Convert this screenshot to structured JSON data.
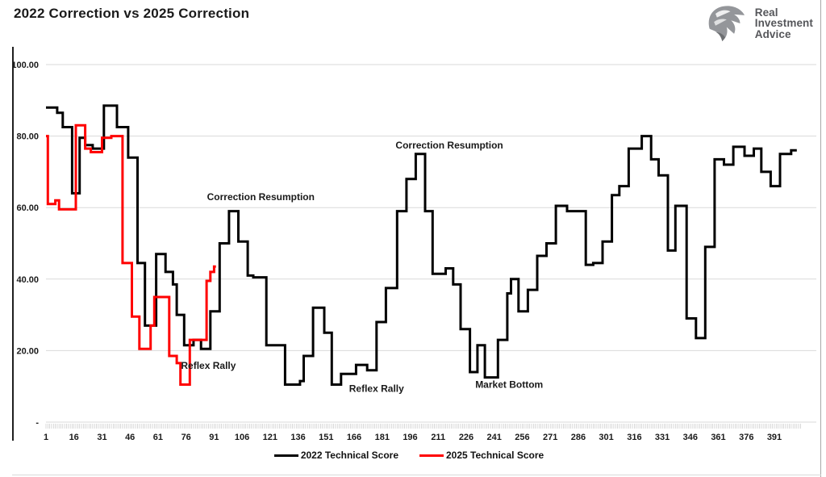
{
  "header": {
    "title": "2022 Correction vs 2025 Correction"
  },
  "logo": {
    "lines": [
      "Real",
      "Investment",
      "Advice"
    ],
    "eagle_color": "#94969a",
    "text_color": "#55565a"
  },
  "legend": [
    {
      "label": "2022 Technical Score",
      "color": "#000000"
    },
    {
      "label": "2025 Technical Score",
      "color": "#ff0000"
    }
  ],
  "chart_data": {
    "type": "line",
    "interpolation": "step-after",
    "title": "2022 Correction vs 2025 Correction",
    "grid": true,
    "legend_position": "bottom",
    "x_axis": {
      "min": 1,
      "max": 405,
      "ticks": [
        1,
        16,
        31,
        46,
        61,
        76,
        91,
        106,
        121,
        136,
        151,
        166,
        181,
        196,
        211,
        226,
        241,
        256,
        271,
        286,
        301,
        316,
        331,
        346,
        361,
        376,
        391
      ]
    },
    "y_axis": {
      "min": 0,
      "max": 100,
      "ticks": [
        {
          "value": 100,
          "label": "100.00"
        },
        {
          "value": 80,
          "label": "80.00"
        },
        {
          "value": 60,
          "label": "60.00"
        },
        {
          "value": 40,
          "label": "40.00"
        },
        {
          "value": 20,
          "label": "20.00"
        },
        {
          "value": 0,
          "label": "-"
        }
      ]
    },
    "series": [
      {
        "name": "2022 Technical Score",
        "color": "#000000",
        "end": 403,
        "steps": [
          [
            1,
            88
          ],
          [
            7,
            86.5
          ],
          [
            10,
            82.5
          ],
          [
            15,
            64
          ],
          [
            19,
            79.5
          ],
          [
            22,
            77.5
          ],
          [
            26,
            76.5
          ],
          [
            32,
            88.5
          ],
          [
            39,
            82.5
          ],
          [
            45,
            74
          ],
          [
            50,
            44.5
          ],
          [
            54,
            27
          ],
          [
            60,
            47
          ],
          [
            65,
            42
          ],
          [
            69,
            38.5
          ],
          [
            71,
            30
          ],
          [
            75,
            21.5
          ],
          [
            80,
            23
          ],
          [
            84,
            20.5
          ],
          [
            89,
            31
          ],
          [
            94,
            50
          ],
          [
            99,
            59
          ],
          [
            104,
            50.5
          ],
          [
            109,
            41
          ],
          [
            112,
            40.5
          ],
          [
            119,
            21.5
          ],
          [
            129,
            10.5
          ],
          [
            137,
            11.5
          ],
          [
            139,
            18.5
          ],
          [
            144,
            32
          ],
          [
            150,
            25
          ],
          [
            154,
            10.5
          ],
          [
            159,
            13.5
          ],
          [
            167,
            16
          ],
          [
            173,
            14.5
          ],
          [
            178,
            28
          ],
          [
            183,
            37.5
          ],
          [
            189,
            59
          ],
          [
            194,
            68
          ],
          [
            199,
            75
          ],
          [
            204,
            59
          ],
          [
            208,
            41.5
          ],
          [
            215,
            43
          ],
          [
            219,
            38.5
          ],
          [
            223,
            26
          ],
          [
            228,
            14
          ],
          [
            232,
            21.5
          ],
          [
            236,
            12.5
          ],
          [
            243,
            23
          ],
          [
            248,
            36
          ],
          [
            250,
            40
          ],
          [
            254,
            31
          ],
          [
            259,
            37
          ],
          [
            264,
            46.5
          ],
          [
            269,
            50
          ],
          [
            274,
            60.5
          ],
          [
            280,
            59
          ],
          [
            290,
            44
          ],
          [
            294,
            44.5
          ],
          [
            299,
            50.5
          ],
          [
            304,
            63.5
          ],
          [
            308,
            66
          ],
          [
            313,
            76.5
          ],
          [
            320,
            80
          ],
          [
            325,
            73.5
          ],
          [
            329,
            69
          ],
          [
            334,
            48
          ],
          [
            338,
            60.5
          ],
          [
            344,
            29
          ],
          [
            349,
            23.5
          ],
          [
            354,
            49
          ],
          [
            359,
            73.5
          ],
          [
            364,
            72
          ],
          [
            369,
            77
          ],
          [
            375,
            74.5
          ],
          [
            380,
            76.5
          ],
          [
            384,
            70
          ],
          [
            389,
            66
          ],
          [
            394,
            75
          ],
          [
            400,
            76
          ]
        ]
      },
      {
        "name": "2025 Technical Score",
        "color": "#ff0000",
        "end": 92,
        "steps": [
          [
            1,
            80
          ],
          [
            2,
            61
          ],
          [
            6,
            62
          ],
          [
            8,
            59.5
          ],
          [
            17,
            83
          ],
          [
            22,
            76.5
          ],
          [
            25,
            75.5
          ],
          [
            31,
            79.5
          ],
          [
            36,
            80
          ],
          [
            42,
            44.5
          ],
          [
            47,
            29.5
          ],
          [
            51,
            20.5
          ],
          [
            57,
            27
          ],
          [
            59,
            35
          ],
          [
            67,
            18.5
          ],
          [
            71,
            16.5
          ],
          [
            73,
            10.5
          ],
          [
            78,
            23
          ],
          [
            87,
            39.5
          ],
          [
            89,
            42
          ],
          [
            91,
            43.5
          ]
        ]
      }
    ],
    "annotations": [
      {
        "text": "Correction Resumption",
        "x": 116,
        "y": 63
      },
      {
        "text": "Correction Resumption",
        "x": 217,
        "y": 77.4
      },
      {
        "text": "Reflex Rally",
        "x": 88,
        "y": 15.8
      },
      {
        "text": "Reflex Rally",
        "x": 178,
        "y": 9.4
      },
      {
        "text": "Market Bottom",
        "x": 249,
        "y": 10.5
      }
    ]
  }
}
